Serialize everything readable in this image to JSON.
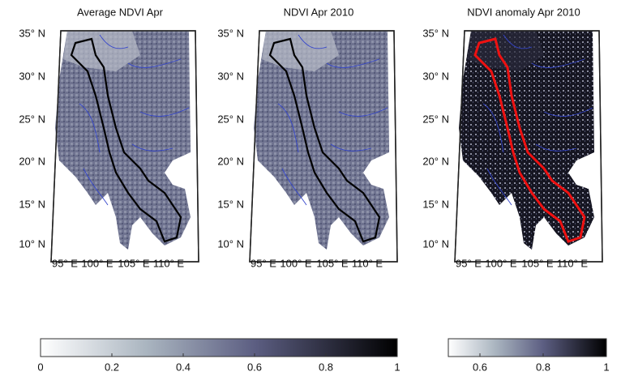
{
  "panels": [
    {
      "title": "Average NDVI Apr",
      "lat_labels": [
        "35° N",
        "30° N",
        "25° N",
        "20° N",
        "15° N",
        "10° N"
      ],
      "lon_labels": [
        "95° E",
        "100° E",
        "105° E",
        "110° E"
      ]
    },
    {
      "title": "NDVI Apr 2010",
      "lat_labels": [
        "35° N",
        "30° N",
        "25° N",
        "20° N",
        "15° N",
        "10° N"
      ],
      "lon_labels": [
        "95° E",
        "100° E",
        "105° E",
        "110° E"
      ]
    },
    {
      "title": "NDVI anomaly Apr 2010",
      "lat_labels": [
        "35° N",
        "30° N",
        "25° N",
        "20° N",
        "15° N",
        "10° N"
      ],
      "lon_labels": [
        "95° E",
        "100° E",
        "105° E",
        "110° E"
      ]
    }
  ],
  "colorbars": [
    {
      "lim": [
        0,
        1
      ],
      "ticks": [
        0,
        0.2,
        0.4,
        0.6,
        0.8,
        1
      ]
    },
    {
      "lim": [
        0.5,
        1
      ],
      "ticks": [
        0.6,
        0.8,
        1
      ]
    }
  ]
}
